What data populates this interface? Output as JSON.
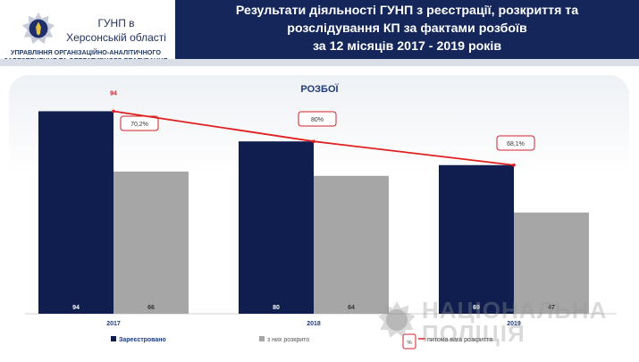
{
  "header": {
    "org_name": "ГУНП в Херсонській області",
    "subdivision_line1": "УПРАВЛІННЯ ОРГАНІЗАЦІЙНО-АНАЛІТИЧНОГО",
    "subdivision_line2": "ЗАБЕЗПЕЧЕННЯ ТА ОПЕРАТИВНОГО РЕАГУВАННЯ",
    "title_line1": "Результати діяльності ГУНП з реєстрації, розкриття та",
    "title_line2": "розслідування КП за фактами розбоїв",
    "title_line3": "за  12 місяців 2017 - 2019 років",
    "colors": {
      "banner": "#15275a",
      "accent": "#d0202a"
    }
  },
  "watermark": {
    "line1": "НАЦІОНАЛЬНА",
    "line2": "ПОЛІЦІЯ"
  },
  "chart_data": {
    "type": "bar",
    "title": "РОЗБОЇ",
    "categories": [
      "2017",
      "2018",
      "2019"
    ],
    "series": [
      {
        "name": "Зареєстровано",
        "values": [
          94,
          80,
          69
        ],
        "color": "#0f1e4f"
      },
      {
        "name": "з них розкрито",
        "values": [
          66,
          64,
          47
        ],
        "color": "#a6a6a6"
      }
    ],
    "line": {
      "name": "питома вага розкриття",
      "values": [
        94,
        80,
        69
      ],
      "color": "#e02020"
    },
    "percent_labels": [
      "70,2%",
      "80%",
      "68,1%"
    ],
    "inside_labels": {
      "registered": [
        "94",
        "80",
        "69"
      ],
      "solved": [
        "66",
        "64",
        "47"
      ]
    },
    "line_labels": [
      "94",
      "80",
      "69"
    ],
    "ylim": [
      0,
      100
    ],
    "grid": false,
    "legend_position": "bottom"
  }
}
